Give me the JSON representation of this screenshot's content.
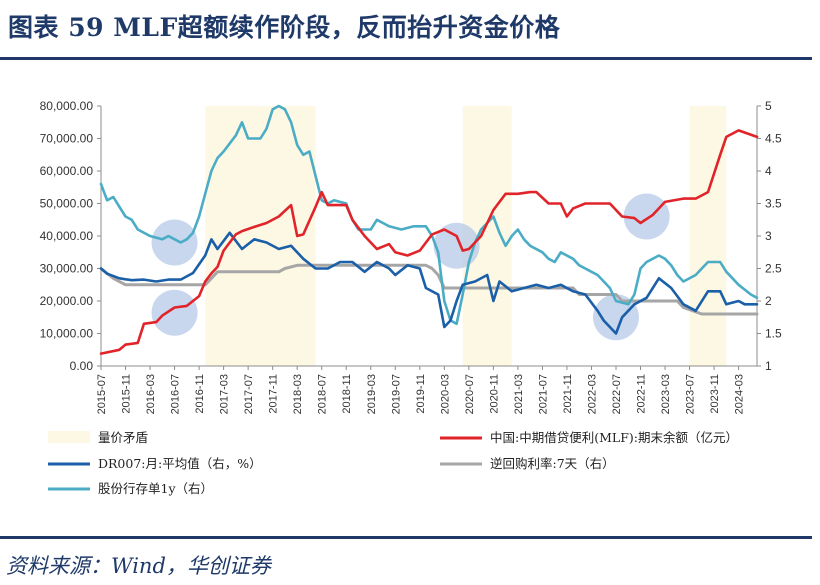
{
  "header": {
    "title": "图表 59 MLF超额续作阶段，反而抬升资金价格"
  },
  "footer": {
    "source": "资料来源：Wind，华创证券"
  },
  "colors": {
    "mlf": "#e0242a",
    "dr007": "#1a5fa8",
    "repo": "#a6a6a6",
    "ncd": "#4bacc6",
    "shade": "#fdf8e4",
    "circle": "#b6c9e8",
    "title": "#1f3a68"
  },
  "chart_data": {
    "type": "line",
    "x_ticks": [
      "2015-07",
      "2015-11",
      "2016-03",
      "2016-07",
      "2016-11",
      "2017-03",
      "2017-07",
      "2017-11",
      "2018-03",
      "2018-07",
      "2018-11",
      "2019-03",
      "2019-07",
      "2019-11",
      "2020-03",
      "2020-07",
      "2020-11",
      "2021-03",
      "2021-07",
      "2021-11",
      "2022-03",
      "2022-07",
      "2022-11",
      "2023-03",
      "2023-07",
      "2023-11",
      "2024-03"
    ],
    "x_range": [
      "2015-07",
      "2024-06"
    ],
    "y_left": {
      "ticks": [
        "0.00",
        "10,000.00",
        "20,000.00",
        "30,000.00",
        "40,000.00",
        "50,000.00",
        "60,000.00",
        "70,000.00",
        "80,000.00"
      ],
      "range": [
        0,
        80000
      ]
    },
    "y_right": {
      "ticks": [
        "1",
        "1.5",
        "2",
        "2.5",
        "3",
        "3.5",
        "4",
        "4.5",
        "5"
      ],
      "range": [
        1,
        5
      ]
    },
    "shaded_periods": [
      {
        "label": "量价矛盾",
        "from": "2016-12",
        "to": "2018-06"
      },
      {
        "from": "2020-06",
        "to": "2021-02"
      },
      {
        "from": "2023-07",
        "to": "2024-01"
      }
    ],
    "highlight_points": [
      {
        "date": "2016-07",
        "axis": "right",
        "value": 2.9
      },
      {
        "date": "2016-07",
        "axis": "right",
        "value": 1.82
      },
      {
        "date": "2020-05",
        "axis": "right",
        "value": 2.85
      },
      {
        "date": "2022-07",
        "axis": "right",
        "value": 1.75
      },
      {
        "date": "2022-12",
        "axis": "right",
        "value": 3.3
      }
    ],
    "series": [
      {
        "name": "中国:中期借贷便利(MLF):期末余额（亿元）",
        "axis": "left",
        "color_key": "mlf",
        "points": [
          [
            "2015-07",
            3800
          ],
          [
            "2015-10",
            5000
          ],
          [
            "2015-11",
            6600
          ],
          [
            "2016-01",
            7100
          ],
          [
            "2016-02",
            13000
          ],
          [
            "2016-04",
            13500
          ],
          [
            "2016-05",
            15500
          ],
          [
            "2016-07",
            18000
          ],
          [
            "2016-09",
            18500
          ],
          [
            "2016-11",
            21500
          ],
          [
            "2016-12",
            26000
          ],
          [
            "2017-01",
            28500
          ],
          [
            "2017-02",
            30500
          ],
          [
            "2017-03",
            35500
          ],
          [
            "2017-05",
            40500
          ],
          [
            "2017-06",
            41500
          ],
          [
            "2017-08",
            42800
          ],
          [
            "2017-10",
            44000
          ],
          [
            "2017-12",
            46000
          ],
          [
            "2018-02",
            49500
          ],
          [
            "2018-03",
            40000
          ],
          [
            "2018-04",
            40500
          ],
          [
            "2018-06",
            49000
          ],
          [
            "2018-07",
            53500
          ],
          [
            "2018-08",
            49500
          ],
          [
            "2018-11",
            49500
          ],
          [
            "2018-12",
            45000
          ],
          [
            "2019-02",
            40000
          ],
          [
            "2019-04",
            36000
          ],
          [
            "2019-06",
            37500
          ],
          [
            "2019-07",
            35000
          ],
          [
            "2019-09",
            34000
          ],
          [
            "2019-11",
            35500
          ],
          [
            "2020-01",
            40500
          ],
          [
            "2020-03",
            42000
          ],
          [
            "2020-05",
            40000
          ],
          [
            "2020-06",
            35500
          ],
          [
            "2020-07",
            36000
          ],
          [
            "2020-09",
            40000
          ],
          [
            "2020-11",
            48000
          ],
          [
            "2021-01",
            53000
          ],
          [
            "2021-03",
            53000
          ],
          [
            "2021-05",
            53500
          ],
          [
            "2021-06",
            53500
          ],
          [
            "2021-08",
            50000
          ],
          [
            "2021-10",
            50000
          ],
          [
            "2021-11",
            46000
          ],
          [
            "2021-12",
            48500
          ],
          [
            "2022-02",
            50000
          ],
          [
            "2022-06",
            50000
          ],
          [
            "2022-08",
            46000
          ],
          [
            "2022-10",
            45500
          ],
          [
            "2022-11",
            44000
          ],
          [
            "2023-01",
            46500
          ],
          [
            "2023-03",
            50500
          ],
          [
            "2023-06",
            51500
          ],
          [
            "2023-08",
            51500
          ],
          [
            "2023-10",
            53500
          ],
          [
            "2023-12",
            65000
          ],
          [
            "2024-01",
            70500
          ],
          [
            "2024-03",
            72500
          ],
          [
            "2024-06",
            70500
          ]
        ]
      },
      {
        "name": "DR007:月:平均值（右，%）",
        "axis": "right",
        "color_key": "dr007",
        "points": [
          [
            "2015-07",
            2.5
          ],
          [
            "2015-08",
            2.42
          ],
          [
            "2015-10",
            2.35
          ],
          [
            "2015-12",
            2.32
          ],
          [
            "2016-02",
            2.33
          ],
          [
            "2016-04",
            2.3
          ],
          [
            "2016-06",
            2.33
          ],
          [
            "2016-08",
            2.33
          ],
          [
            "2016-10",
            2.43
          ],
          [
            "2016-12",
            2.7
          ],
          [
            "2017-01",
            2.95
          ],
          [
            "2017-02",
            2.8
          ],
          [
            "2017-04",
            3.05
          ],
          [
            "2017-06",
            2.8
          ],
          [
            "2017-08",
            2.95
          ],
          [
            "2017-10",
            2.9
          ],
          [
            "2017-12",
            2.8
          ],
          [
            "2018-02",
            2.85
          ],
          [
            "2018-04",
            2.65
          ],
          [
            "2018-06",
            2.5
          ],
          [
            "2018-08",
            2.5
          ],
          [
            "2018-10",
            2.6
          ],
          [
            "2018-12",
            2.6
          ],
          [
            "2019-02",
            2.45
          ],
          [
            "2019-04",
            2.6
          ],
          [
            "2019-06",
            2.5
          ],
          [
            "2019-07",
            2.4
          ],
          [
            "2019-09",
            2.55
          ],
          [
            "2019-11",
            2.5
          ],
          [
            "2019-12",
            2.2
          ],
          [
            "2020-02",
            2.1
          ],
          [
            "2020-03",
            1.6
          ],
          [
            "2020-04",
            1.7
          ],
          [
            "2020-05",
            2
          ],
          [
            "2020-06",
            2.25
          ],
          [
            "2020-08",
            2.3
          ],
          [
            "2020-10",
            2.4
          ],
          [
            "2020-11",
            2
          ],
          [
            "2020-12",
            2.3
          ],
          [
            "2021-02",
            2.15
          ],
          [
            "2021-04",
            2.2
          ],
          [
            "2021-06",
            2.25
          ],
          [
            "2021-08",
            2.2
          ],
          [
            "2021-10",
            2.25
          ],
          [
            "2021-12",
            2.15
          ],
          [
            "2022-02",
            2.1
          ],
          [
            "2022-04",
            1.85
          ],
          [
            "2022-05",
            1.7
          ],
          [
            "2022-07",
            1.5
          ],
          [
            "2022-08",
            1.75
          ],
          [
            "2022-10",
            1.95
          ],
          [
            "2022-12",
            2.05
          ],
          [
            "2023-02",
            2.35
          ],
          [
            "2023-04",
            2.2
          ],
          [
            "2023-06",
            1.95
          ],
          [
            "2023-08",
            1.85
          ],
          [
            "2023-10",
            2.15
          ],
          [
            "2023-12",
            2.15
          ],
          [
            "2024-01",
            1.95
          ],
          [
            "2024-03",
            2
          ],
          [
            "2024-04",
            1.95
          ],
          [
            "2024-06",
            1.95
          ]
        ]
      },
      {
        "name": "逆回购利率:7天（右）",
        "axis": "right",
        "color_key": "repo",
        "points": [
          [
            "2015-07",
            2.5
          ],
          [
            "2015-09",
            2.35
          ],
          [
            "2015-11",
            2.25
          ],
          [
            "2016-01",
            2.25
          ],
          [
            "2016-03",
            2.25
          ],
          [
            "2016-06",
            2.25
          ],
          [
            "2016-09",
            2.25
          ],
          [
            "2016-12",
            2.25
          ],
          [
            "2017-01",
            2.35
          ],
          [
            "2017-02",
            2.45
          ],
          [
            "2017-12",
            2.45
          ],
          [
            "2018-01",
            2.5
          ],
          [
            "2018-03",
            2.55
          ],
          [
            "2019-12",
            2.55
          ],
          [
            "2020-01",
            2.5
          ],
          [
            "2020-02",
            2.4
          ],
          [
            "2020-03",
            2.2
          ],
          [
            "2021-12",
            2.2
          ],
          [
            "2022-01",
            2.1
          ],
          [
            "2022-07",
            2.1
          ],
          [
            "2022-08",
            2
          ],
          [
            "2023-05",
            2
          ],
          [
            "2023-06",
            1.9
          ],
          [
            "2023-09",
            1.8
          ],
          [
            "2024-06",
            1.8
          ]
        ]
      },
      {
        "name": "股份行存单1y（右）",
        "axis": "right",
        "color_key": "ncd",
        "points": [
          [
            "2015-07",
            3.8
          ],
          [
            "2015-08",
            3.55
          ],
          [
            "2015-09",
            3.6
          ],
          [
            "2015-10",
            3.45
          ],
          [
            "2015-11",
            3.3
          ],
          [
            "2015-12",
            3.25
          ],
          [
            "2016-01",
            3.1
          ],
          [
            "2016-03",
            3.0
          ],
          [
            "2016-05",
            2.95
          ],
          [
            "2016-06",
            3.0
          ],
          [
            "2016-07",
            2.95
          ],
          [
            "2016-08",
            2.9
          ],
          [
            "2016-09",
            2.95
          ],
          [
            "2016-10",
            3.05
          ],
          [
            "2016-11",
            3.3
          ],
          [
            "2016-12",
            3.65
          ],
          [
            "2017-01",
            4.0
          ],
          [
            "2017-02",
            4.2
          ],
          [
            "2017-03",
            4.3
          ],
          [
            "2017-05",
            4.55
          ],
          [
            "2017-06",
            4.75
          ],
          [
            "2017-07",
            4.5
          ],
          [
            "2017-09",
            4.5
          ],
          [
            "2017-10",
            4.65
          ],
          [
            "2017-11",
            4.95
          ],
          [
            "2017-12",
            5.0
          ],
          [
            "2018-01",
            4.95
          ],
          [
            "2018-02",
            4.75
          ],
          [
            "2018-03",
            4.4
          ],
          [
            "2018-04",
            4.25
          ],
          [
            "2018-05",
            4.3
          ],
          [
            "2018-07",
            3.55
          ],
          [
            "2018-08",
            3.5
          ],
          [
            "2018-09",
            3.55
          ],
          [
            "2018-11",
            3.5
          ],
          [
            "2018-12",
            3.25
          ],
          [
            "2019-01",
            3.1
          ],
          [
            "2019-03",
            3.1
          ],
          [
            "2019-04",
            3.25
          ],
          [
            "2019-05",
            3.2
          ],
          [
            "2019-06",
            3.15
          ],
          [
            "2019-08",
            3.1
          ],
          [
            "2019-10",
            3.15
          ],
          [
            "2019-12",
            3.15
          ],
          [
            "2020-01",
            3.0
          ],
          [
            "2020-02",
            2.75
          ],
          [
            "2020-03",
            2.0
          ],
          [
            "2020-04",
            1.7
          ],
          [
            "2020-05",
            1.65
          ],
          [
            "2020-06",
            2.1
          ],
          [
            "2020-07",
            2.6
          ],
          [
            "2020-08",
            2.9
          ],
          [
            "2020-09",
            3.1
          ],
          [
            "2020-10",
            3.2
          ],
          [
            "2020-11",
            3.3
          ],
          [
            "2020-12",
            3.05
          ],
          [
            "2021-01",
            2.85
          ],
          [
            "2021-02",
            3.0
          ],
          [
            "2021-03",
            3.1
          ],
          [
            "2021-04",
            2.95
          ],
          [
            "2021-05",
            2.85
          ],
          [
            "2021-07",
            2.75
          ],
          [
            "2021-08",
            2.65
          ],
          [
            "2021-09",
            2.6
          ],
          [
            "2021-10",
            2.75
          ],
          [
            "2021-12",
            2.65
          ],
          [
            "2022-01",
            2.55
          ],
          [
            "2022-02",
            2.5
          ],
          [
            "2022-03",
            2.45
          ],
          [
            "2022-04",
            2.4
          ],
          [
            "2022-06",
            2.2
          ],
          [
            "2022-07",
            2.0
          ],
          [
            "2022-09",
            1.95
          ],
          [
            "2022-10",
            2.1
          ],
          [
            "2022-11",
            2.5
          ],
          [
            "2022-12",
            2.6
          ],
          [
            "2023-02",
            2.7
          ],
          [
            "2023-03",
            2.65
          ],
          [
            "2023-04",
            2.55
          ],
          [
            "2023-05",
            2.4
          ],
          [
            "2023-06",
            2.3
          ],
          [
            "2023-08",
            2.4
          ],
          [
            "2023-09",
            2.5
          ],
          [
            "2023-10",
            2.6
          ],
          [
            "2023-12",
            2.6
          ],
          [
            "2024-01",
            2.45
          ],
          [
            "2024-02",
            2.35
          ],
          [
            "2024-03",
            2.25
          ],
          [
            "2024-05",
            2.1
          ],
          [
            "2024-06",
            2.05
          ]
        ]
      }
    ],
    "legend": [
      {
        "label": "量价矛盾",
        "kind": "shade"
      },
      {
        "label": "中国:中期借贷便利(MLF):期末余额（亿元）",
        "kind": "line",
        "color_key": "mlf"
      },
      {
        "label": "DR007:月:平均值（右，%）",
        "kind": "line",
        "color_key": "dr007"
      },
      {
        "label": "逆回购利率:7天（右）",
        "kind": "line",
        "color_key": "repo"
      },
      {
        "label": "股份行存单1y（右）",
        "kind": "line",
        "color_key": "ncd"
      }
    ]
  }
}
